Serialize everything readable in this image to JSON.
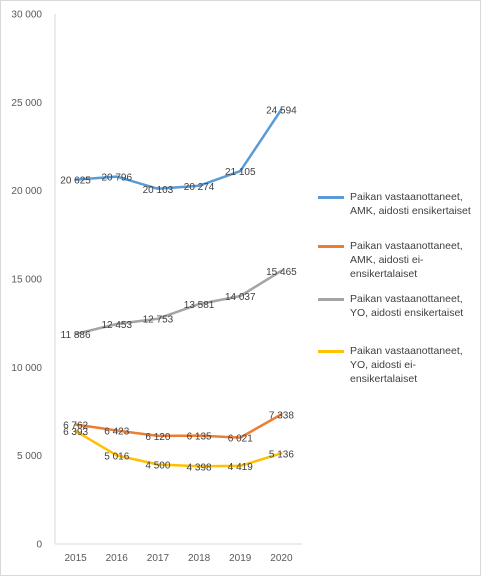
{
  "chart_data": {
    "type": "line",
    "x": [
      "2015",
      "2016",
      "2017",
      "2018",
      "2019",
      "2020"
    ],
    "ylim": [
      0,
      30000
    ],
    "yticks": [
      0,
      5000,
      10000,
      15000,
      20000,
      25000,
      30000
    ],
    "ytick_labels": [
      "0",
      "5 000",
      "10 000",
      "15 000",
      "20 000",
      "25 000",
      "30 000"
    ],
    "grid": false,
    "legend_position": "right",
    "series": [
      {
        "name": "Paikan vastaanottaneet, AMK, aidosti ensikertaiset",
        "color": "#5b9bd5",
        "values": [
          20625,
          20796,
          20103,
          20274,
          21105,
          24594
        ],
        "labels": [
          "20 625",
          "20 796",
          "20 103",
          "20 274",
          "21 105",
          "24 594"
        ]
      },
      {
        "name": "Paikan vastaanottaneet, AMK, aidosti ei-ensikertalaiset",
        "color": "#ed7d31",
        "values": [
          6762,
          6423,
          6120,
          6135,
          6021,
          7338
        ],
        "labels": [
          "6 762",
          "6 423",
          "6 120",
          "6 135",
          "6 021",
          "7 338"
        ]
      },
      {
        "name": "Paikan vastaanottaneet, YO, aidosti ensikertaiset",
        "color": "#a5a5a5",
        "values": [
          11886,
          12453,
          12753,
          13581,
          14037,
          15465
        ],
        "labels": [
          "11 886",
          "12 453",
          "12 753",
          "13 581",
          "14 037",
          "15 465"
        ]
      },
      {
        "name": "Paikan vastaanottaneet, YO, aidosti ei-ensikertalaiset",
        "color": "#ffc000",
        "values": [
          6393,
          5016,
          4500,
          4398,
          4419,
          5136
        ],
        "labels": [
          "6 393",
          "5 016",
          "4 500",
          "4 398",
          "4 419",
          "5 136"
        ]
      }
    ]
  },
  "legend": {
    "items": [
      {
        "label": "Paikan vastaanottaneet, AMK, aidosti ensikertaiset",
        "color": "#5b9bd5"
      },
      {
        "label": "Paikan vastaanottaneet, AMK, aidosti ei-ensikertalaiset",
        "color": "#ed7d31"
      },
      {
        "label": "Paikan vastaanottaneet, YO, aidosti ensikertaiset",
        "color": "#a5a5a5"
      },
      {
        "label": "Paikan vastaanottaneet, YO, aidosti ei-ensikertalaiset",
        "color": "#ffc000"
      }
    ]
  }
}
